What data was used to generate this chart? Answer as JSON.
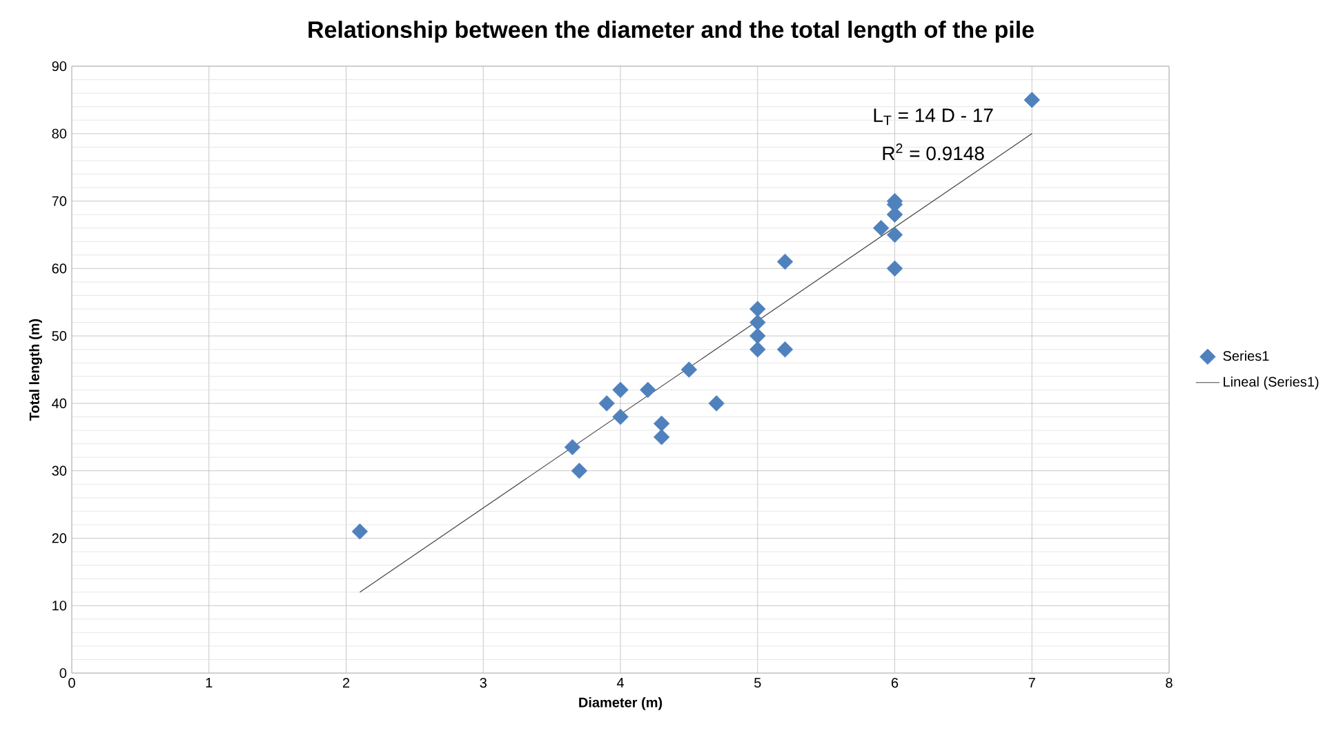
{
  "chart_data": {
    "type": "scatter",
    "title": "Relationship between the diameter and the total length of the pile",
    "xlabel": "Diameter (m)",
    "ylabel": "Total length (m)",
    "xlim": [
      0,
      8
    ],
    "ylim": [
      0,
      90
    ],
    "xticks": [
      0,
      1,
      2,
      3,
      4,
      5,
      6,
      7,
      8
    ],
    "yticks": [
      0,
      10,
      20,
      30,
      40,
      50,
      60,
      70,
      80,
      90
    ],
    "grid": true,
    "legend": "right",
    "annotations": [
      "L$_{T}$ = 14 D - 17",
      "R$^{2}$ = 0.9148"
    ],
    "series": [
      {
        "name": "Series1",
        "marker": "diamond",
        "color": "#4f81bd",
        "x": [
          2.1,
          3.65,
          3.7,
          3.9,
          4,
          4,
          4.2,
          4.3,
          4.3,
          4.5,
          4.7,
          5,
          5,
          5,
          5,
          5.2,
          5.2,
          5.9,
          6,
          6,
          6,
          6,
          6,
          7
        ],
        "values": [
          21,
          33.5,
          30,
          40,
          42,
          38,
          42,
          37,
          35,
          45,
          40,
          54,
          52,
          50,
          48,
          61,
          48,
          66,
          70,
          69.5,
          68,
          65,
          60,
          85
        ]
      },
      {
        "name": "Lineal (Series1)",
        "type": "line",
        "marker": "none",
        "color": "#404040",
        "x": [
          2.1,
          7
        ],
        "values": [
          12,
          80
        ]
      }
    ]
  }
}
